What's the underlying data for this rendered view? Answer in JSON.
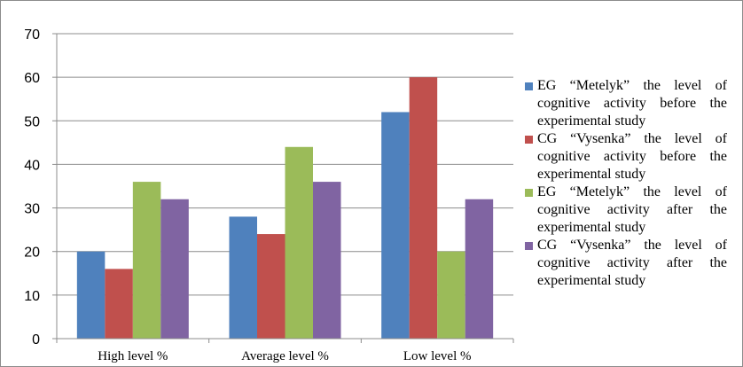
{
  "chart_data": {
    "type": "bar",
    "categories": [
      "High level %",
      "Average level %",
      "Low level %"
    ],
    "series": [
      {
        "name": "EG “Metelyk”  the level of cognitive activity before the experimental  study",
        "color": "#4f81bd",
        "values": [
          20,
          28,
          52
        ]
      },
      {
        "name": "CG “Vysenka”  the level of cognitive activity before the experimental  study",
        "color": "#c0504d",
        "values": [
          16,
          24,
          60
        ]
      },
      {
        "name": "EG “Metelyk”  the level of cognitive activity after the experimental  study",
        "color": "#9bbb59",
        "values": [
          36,
          44,
          20
        ]
      },
      {
        "name": "CG “Vysenka”  the level of cognitive activity after the experimental  study",
        "color": "#8064a2",
        "values": [
          32,
          36,
          32
        ]
      }
    ],
    "ylim": [
      0,
      70
    ],
    "yticks": [
      0,
      10,
      20,
      30,
      40,
      50,
      60,
      70
    ],
    "grid": true,
    "legend_position": "right"
  }
}
